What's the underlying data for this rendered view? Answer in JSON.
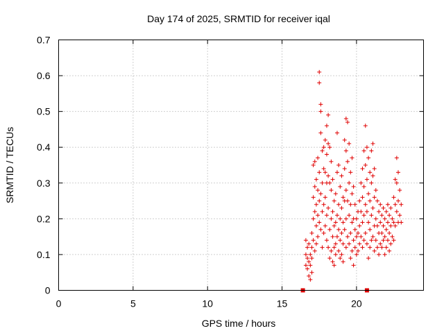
{
  "chart_data": {
    "type": "scatter",
    "title": "Day 174 of 2025, SRMTID for receiver iqal",
    "xlabel": "GPS time / hours",
    "ylabel": "SRMTID / TECUs",
    "xlim": [
      0,
      24.5
    ],
    "ylim": [
      0,
      0.7
    ],
    "xticks": [
      0,
      5,
      10,
      15,
      20
    ],
    "xtick_labels": [
      "0",
      "5",
      "10",
      "15",
      "20"
    ],
    "yticks": [
      0,
      0.1,
      0.2,
      0.3,
      0.4,
      0.5,
      0.6,
      0.7
    ],
    "ytick_labels": [
      "0",
      "0.1",
      "0.2",
      "0.3",
      "0.4",
      "0.5",
      "0.6",
      "0.7"
    ],
    "grid": true,
    "marker": "+",
    "color": "#e00000",
    "gap_markers_x": [
      16.4,
      20.7
    ],
    "series": [
      {
        "name": "SRMTID",
        "points": [
          [
            16.6,
            0.14
          ],
          [
            16.6,
            0.1
          ],
          [
            16.6,
            0.07
          ],
          [
            16.7,
            0.12
          ],
          [
            16.7,
            0.06
          ],
          [
            16.7,
            0.09
          ],
          [
            16.8,
            0.04
          ],
          [
            16.8,
            0.08
          ],
          [
            16.8,
            0.13
          ],
          [
            16.9,
            0.03
          ],
          [
            16.9,
            0.1
          ],
          [
            16.9,
            0.07
          ],
          [
            17.0,
            0.12
          ],
          [
            17.0,
            0.05
          ],
          [
            17.0,
            0.09
          ],
          [
            17.0,
            0.16
          ],
          [
            17.1,
            0.35
          ],
          [
            17.1,
            0.26
          ],
          [
            17.1,
            0.2
          ],
          [
            17.1,
            0.14
          ],
          [
            17.2,
            0.36
          ],
          [
            17.2,
            0.29
          ],
          [
            17.2,
            0.22
          ],
          [
            17.2,
            0.11
          ],
          [
            17.3,
            0.31
          ],
          [
            17.3,
            0.24
          ],
          [
            17.3,
            0.18
          ],
          [
            17.3,
            0.13
          ],
          [
            17.4,
            0.37
          ],
          [
            17.4,
            0.28
          ],
          [
            17.4,
            0.21
          ],
          [
            17.4,
            0.15
          ],
          [
            17.5,
            0.61
          ],
          [
            17.5,
            0.58
          ],
          [
            17.5,
            0.33
          ],
          [
            17.5,
            0.25
          ],
          [
            17.5,
            0.19
          ],
          [
            17.6,
            0.52
          ],
          [
            17.6,
            0.5
          ],
          [
            17.6,
            0.44
          ],
          [
            17.6,
            0.27
          ],
          [
            17.6,
            0.17
          ],
          [
            17.7,
            0.39
          ],
          [
            17.7,
            0.3
          ],
          [
            17.7,
            0.22
          ],
          [
            17.7,
            0.12
          ],
          [
            17.8,
            0.4
          ],
          [
            17.8,
            0.34
          ],
          [
            17.8,
            0.24
          ],
          [
            17.8,
            0.16
          ],
          [
            17.9,
            0.42
          ],
          [
            17.9,
            0.33
          ],
          [
            17.9,
            0.26
          ],
          [
            17.9,
            0.18
          ],
          [
            18.0,
            0.46
          ],
          [
            18.0,
            0.38
          ],
          [
            18.0,
            0.3
          ],
          [
            18.0,
            0.21
          ],
          [
            18.0,
            0.14
          ],
          [
            18.1,
            0.49
          ],
          [
            18.1,
            0.41
          ],
          [
            18.1,
            0.32
          ],
          [
            18.1,
            0.23
          ],
          [
            18.1,
            0.12
          ],
          [
            18.2,
            0.4
          ],
          [
            18.2,
            0.3
          ],
          [
            18.2,
            0.17
          ],
          [
            18.2,
            0.09
          ],
          [
            18.3,
            0.36
          ],
          [
            18.3,
            0.28
          ],
          [
            18.3,
            0.2
          ],
          [
            18.3,
            0.11
          ],
          [
            18.4,
            0.31
          ],
          [
            18.4,
            0.22
          ],
          [
            18.4,
            0.15
          ],
          [
            18.4,
            0.08
          ],
          [
            18.5,
            0.25
          ],
          [
            18.5,
            0.18
          ],
          [
            18.5,
            0.12
          ],
          [
            18.5,
            0.07
          ],
          [
            18.6,
            0.27
          ],
          [
            18.6,
            0.19
          ],
          [
            18.6,
            0.13
          ],
          [
            18.6,
            0.1
          ],
          [
            18.7,
            0.44
          ],
          [
            18.7,
            0.33
          ],
          [
            18.7,
            0.21
          ],
          [
            18.7,
            0.15
          ],
          [
            18.8,
            0.35
          ],
          [
            18.8,
            0.24
          ],
          [
            18.8,
            0.17
          ],
          [
            18.8,
            0.11
          ],
          [
            18.9,
            0.29
          ],
          [
            18.9,
            0.2
          ],
          [
            18.9,
            0.14
          ],
          [
            18.9,
            0.09
          ],
          [
            19.0,
            0.32
          ],
          [
            19.0,
            0.23
          ],
          [
            19.0,
            0.16
          ],
          [
            19.0,
            0.1
          ],
          [
            19.1,
            0.26
          ],
          [
            19.1,
            0.19
          ],
          [
            19.1,
            0.13
          ],
          [
            19.1,
            0.08
          ],
          [
            19.2,
            0.42
          ],
          [
            19.2,
            0.34
          ],
          [
            19.2,
            0.25
          ],
          [
            19.2,
            0.17
          ],
          [
            19.3,
            0.48
          ],
          [
            19.3,
            0.39
          ],
          [
            19.3,
            0.28
          ],
          [
            19.3,
            0.2
          ],
          [
            19.3,
            0.12
          ],
          [
            19.4,
            0.47
          ],
          [
            19.4,
            0.36
          ],
          [
            19.4,
            0.25
          ],
          [
            19.4,
            0.15
          ],
          [
            19.5,
            0.41
          ],
          [
            19.5,
            0.3
          ],
          [
            19.5,
            0.21
          ],
          [
            19.5,
            0.13
          ],
          [
            19.6,
            0.33
          ],
          [
            19.6,
            0.24
          ],
          [
            19.6,
            0.16
          ],
          [
            19.6,
            0.09
          ],
          [
            19.7,
            0.37
          ],
          [
            19.7,
            0.27
          ],
          [
            19.7,
            0.19
          ],
          [
            19.7,
            0.11
          ],
          [
            19.8,
            0.29
          ],
          [
            19.8,
            0.2
          ],
          [
            19.8,
            0.14
          ],
          [
            19.8,
            0.07
          ],
          [
            19.9,
            0.24
          ],
          [
            19.9,
            0.17
          ],
          [
            19.9,
            0.12
          ],
          [
            20.0,
            0.2
          ],
          [
            20.0,
            0.15
          ],
          [
            20.0,
            0.1
          ],
          [
            20.1,
            0.22
          ],
          [
            20.1,
            0.16
          ],
          [
            20.1,
            0.11
          ],
          [
            20.2,
            0.25
          ],
          [
            20.2,
            0.18
          ],
          [
            20.2,
            0.13
          ],
          [
            20.3,
            0.3
          ],
          [
            20.3,
            0.22
          ],
          [
            20.3,
            0.15
          ],
          [
            20.4,
            0.34
          ],
          [
            20.4,
            0.26
          ],
          [
            20.4,
            0.19
          ],
          [
            20.4,
            0.12
          ],
          [
            20.5,
            0.39
          ],
          [
            20.5,
            0.29
          ],
          [
            20.5,
            0.21
          ],
          [
            20.5,
            0.14
          ],
          [
            20.6,
            0.46
          ],
          [
            20.6,
            0.35
          ],
          [
            20.6,
            0.24
          ],
          [
            20.6,
            0.16
          ],
          [
            20.7,
            0.4
          ],
          [
            20.7,
            0.31
          ],
          [
            20.7,
            0.22
          ],
          [
            20.7,
            0.13
          ],
          [
            20.8,
            0.37
          ],
          [
            20.8,
            0.27
          ],
          [
            20.8,
            0.19
          ],
          [
            20.8,
            0.09
          ],
          [
            20.9,
            0.33
          ],
          [
            20.9,
            0.25
          ],
          [
            20.9,
            0.17
          ],
          [
            20.9,
            0.12
          ],
          [
            21.0,
            0.39
          ],
          [
            21.0,
            0.3
          ],
          [
            21.0,
            0.21
          ],
          [
            21.0,
            0.14
          ],
          [
            21.1,
            0.41
          ],
          [
            21.1,
            0.32
          ],
          [
            21.1,
            0.23
          ],
          [
            21.1,
            0.15
          ],
          [
            21.2,
            0.34
          ],
          [
            21.2,
            0.26
          ],
          [
            21.2,
            0.18
          ],
          [
            21.2,
            0.11
          ],
          [
            21.3,
            0.28
          ],
          [
            21.3,
            0.2
          ],
          [
            21.3,
            0.14
          ],
          [
            21.4,
            0.25
          ],
          [
            21.4,
            0.18
          ],
          [
            21.4,
            0.12
          ],
          [
            21.5,
            0.22
          ],
          [
            21.5,
            0.16
          ],
          [
            21.5,
            0.1
          ],
          [
            21.6,
            0.24
          ],
          [
            21.6,
            0.19
          ],
          [
            21.6,
            0.13
          ],
          [
            21.7,
            0.21
          ],
          [
            21.7,
            0.16
          ],
          [
            21.7,
            0.12
          ],
          [
            21.8,
            0.23
          ],
          [
            21.8,
            0.18
          ],
          [
            21.8,
            0.14
          ],
          [
            21.9,
            0.2
          ],
          [
            21.9,
            0.15
          ],
          [
            21.9,
            0.1
          ],
          [
            22.0,
            0.22
          ],
          [
            22.0,
            0.17
          ],
          [
            22.0,
            0.12
          ],
          [
            22.1,
            0.24
          ],
          [
            22.1,
            0.19
          ],
          [
            22.1,
            0.14
          ],
          [
            22.2,
            0.21
          ],
          [
            22.2,
            0.16
          ],
          [
            22.2,
            0.11
          ],
          [
            22.3,
            0.23
          ],
          [
            22.3,
            0.18
          ],
          [
            22.3,
            0.13
          ],
          [
            22.4,
            0.2
          ],
          [
            22.4,
            0.15
          ],
          [
            22.5,
            0.26
          ],
          [
            22.5,
            0.19
          ],
          [
            22.5,
            0.14
          ],
          [
            22.6,
            0.31
          ],
          [
            22.6,
            0.24
          ],
          [
            22.6,
            0.18
          ],
          [
            22.7,
            0.37
          ],
          [
            22.7,
            0.3
          ],
          [
            22.7,
            0.22
          ],
          [
            22.8,
            0.33
          ],
          [
            22.8,
            0.25
          ],
          [
            22.8,
            0.19
          ],
          [
            22.9,
            0.28
          ],
          [
            22.9,
            0.21
          ],
          [
            23.0,
            0.24
          ],
          [
            23.0,
            0.19
          ]
        ]
      }
    ]
  }
}
